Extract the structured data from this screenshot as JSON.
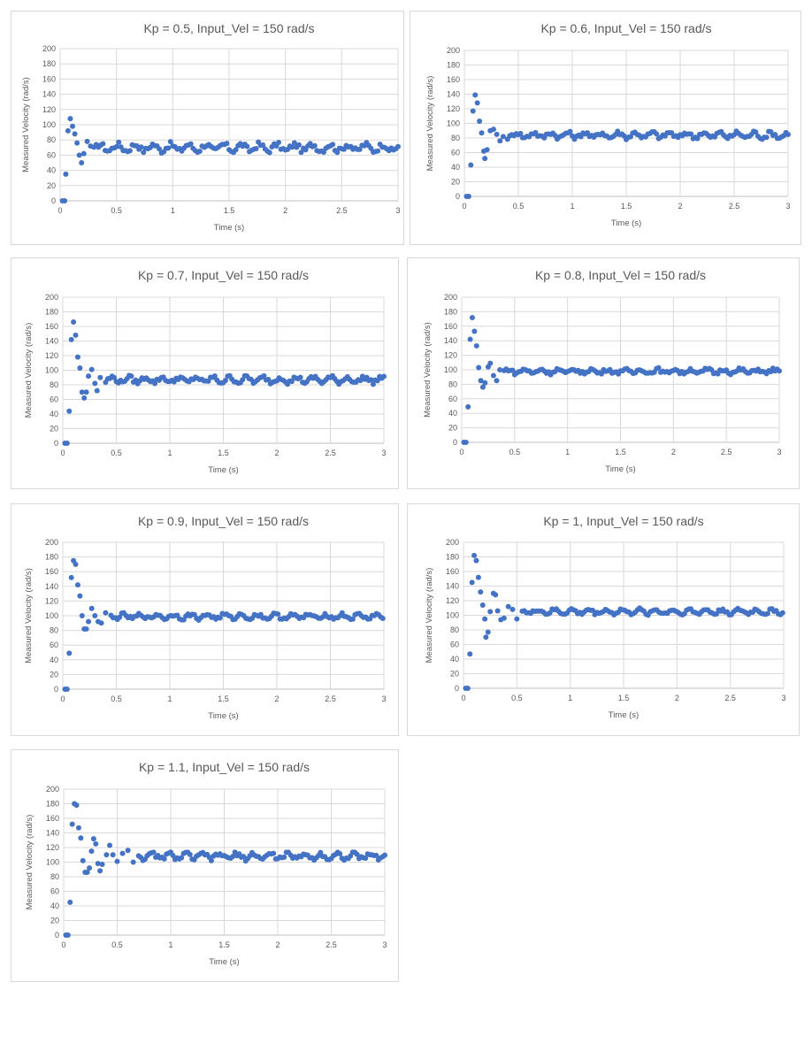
{
  "chart_data": [
    {
      "type": "scatter",
      "title": "Kp = 0.5, Input_Vel = 150 rad/s",
      "xlabel": "Time (s)",
      "ylabel": "Measured Velocity (rad/s)",
      "xlim": [
        0,
        3
      ],
      "ylim": [
        0,
        200
      ],
      "xticks": [
        "0",
        "0.5",
        "1",
        "1.5",
        "2",
        "2.5",
        "3"
      ],
      "yticks": [
        "0",
        "20",
        "40",
        "60",
        "80",
        "100",
        "120",
        "140",
        "160",
        "180",
        "200"
      ],
      "grid": true,
      "marker_color": "#4472c4",
      "peaks": [
        [
          0.02,
          0
        ],
        [
          0.04,
          0
        ],
        [
          0.05,
          35
        ],
        [
          0.07,
          92
        ],
        [
          0.09,
          108
        ],
        [
          0.11,
          98
        ],
        [
          0.13,
          88
        ],
        [
          0.15,
          76
        ],
        [
          0.17,
          60
        ],
        [
          0.19,
          50
        ],
        [
          0.21,
          62
        ],
        [
          0.24,
          78
        ],
        [
          0.27,
          72
        ]
      ],
      "steady": 70,
      "noise": 6,
      "t_start": 0.3
    },
    {
      "type": "scatter",
      "title": "Kp = 0.6, Input_Vel = 150 rad/s",
      "xlabel": "Time (s)",
      "ylabel": "Measured Velocity (rad/s)",
      "xlim": [
        0,
        3
      ],
      "ylim": [
        0,
        200
      ],
      "xticks": [
        "0",
        "0.5",
        "1",
        "1.5",
        "2",
        "2.5",
        "3"
      ],
      "yticks": [
        "0",
        "20",
        "40",
        "60",
        "80",
        "100",
        "120",
        "140",
        "160",
        "180",
        "200"
      ],
      "grid": true,
      "marker_color": "#4472c4",
      "peaks": [
        [
          0.02,
          0
        ],
        [
          0.04,
          0
        ],
        [
          0.06,
          43
        ],
        [
          0.08,
          117
        ],
        [
          0.1,
          139
        ],
        [
          0.12,
          128
        ],
        [
          0.14,
          103
        ],
        [
          0.16,
          87
        ],
        [
          0.18,
          62
        ],
        [
          0.19,
          52
        ],
        [
          0.21,
          64
        ],
        [
          0.24,
          90
        ],
        [
          0.27,
          92
        ],
        [
          0.3,
          85
        ],
        [
          0.33,
          76
        ],
        [
          0.36,
          82
        ]
      ],
      "steady": 84,
      "noise": 5,
      "t_start": 0.4
    },
    {
      "type": "scatter",
      "title": "Kp = 0.7, Input_Vel = 150 rad/s",
      "xlabel": "Time (s)",
      "ylabel": "Measured Velocity (rad/s)",
      "xlim": [
        0,
        3
      ],
      "ylim": [
        0,
        200
      ],
      "xticks": [
        "0",
        "0.5",
        "1",
        "1.5",
        "2",
        "2.5",
        "3"
      ],
      "yticks": [
        "0",
        "20",
        "40",
        "60",
        "80",
        "100",
        "120",
        "140",
        "160",
        "180",
        "200"
      ],
      "grid": true,
      "marker_color": "#4472c4",
      "peaks": [
        [
          0.02,
          0
        ],
        [
          0.04,
          0
        ],
        [
          0.06,
          44
        ],
        [
          0.08,
          142
        ],
        [
          0.1,
          166
        ],
        [
          0.12,
          148
        ],
        [
          0.14,
          118
        ],
        [
          0.16,
          103
        ],
        [
          0.18,
          70
        ],
        [
          0.2,
          62
        ],
        [
          0.22,
          70
        ],
        [
          0.24,
          92
        ],
        [
          0.27,
          101
        ],
        [
          0.3,
          82
        ],
        [
          0.32,
          72
        ],
        [
          0.35,
          90
        ]
      ],
      "steady": 87,
      "noise": 5,
      "t_start": 0.4
    },
    {
      "type": "scatter",
      "title": "Kp = 0.8, Input_Vel = 150 rad/s",
      "xlabel": "Time (s)",
      "ylabel": "Measured Velocity (rad/s)",
      "xlim": [
        0,
        3
      ],
      "ylim": [
        0,
        200
      ],
      "xticks": [
        "0",
        "0.5",
        "1",
        "1.5",
        "2",
        "2.5",
        "3"
      ],
      "yticks": [
        "0",
        "20",
        "40",
        "60",
        "80",
        "100",
        "120",
        "140",
        "160",
        "180",
        "200"
      ],
      "grid": true,
      "marker_color": "#4472c4",
      "peaks": [
        [
          0.02,
          0
        ],
        [
          0.04,
          0
        ],
        [
          0.06,
          49
        ],
        [
          0.08,
          142
        ],
        [
          0.1,
          172
        ],
        [
          0.12,
          153
        ],
        [
          0.14,
          133
        ],
        [
          0.16,
          103
        ],
        [
          0.18,
          85
        ],
        [
          0.2,
          76
        ],
        [
          0.22,
          82
        ],
        [
          0.25,
          104
        ],
        [
          0.27,
          109
        ],
        [
          0.3,
          92
        ],
        [
          0.33,
          85
        ],
        [
          0.36,
          100
        ]
      ],
      "steady": 98,
      "noise": 4,
      "t_start": 0.4
    },
    {
      "type": "scatter",
      "title": "Kp = 0.9, Input_Vel = 150 rad/s",
      "xlabel": "Time (s)",
      "ylabel": "Measured Velocity (rad/s)",
      "xlim": [
        0,
        3
      ],
      "ylim": [
        0,
        200
      ],
      "xticks": [
        "0",
        "0.5",
        "1",
        "1.5",
        "2",
        "2.5",
        "3"
      ],
      "yticks": [
        "0",
        "20",
        "40",
        "60",
        "80",
        "100",
        "120",
        "140",
        "160",
        "180",
        "200"
      ],
      "grid": true,
      "marker_color": "#4472c4",
      "peaks": [
        [
          0.02,
          0
        ],
        [
          0.04,
          0
        ],
        [
          0.06,
          49
        ],
        [
          0.08,
          152
        ],
        [
          0.1,
          175
        ],
        [
          0.12,
          170
        ],
        [
          0.14,
          142
        ],
        [
          0.16,
          127
        ],
        [
          0.18,
          100
        ],
        [
          0.2,
          82
        ],
        [
          0.22,
          82
        ],
        [
          0.24,
          92
        ],
        [
          0.27,
          110
        ],
        [
          0.3,
          100
        ],
        [
          0.33,
          92
        ],
        [
          0.36,
          90
        ],
        [
          0.4,
          104
        ]
      ],
      "steady": 99,
      "noise": 4,
      "t_start": 0.45
    },
    {
      "type": "scatter",
      "title": "Kp = 1, Input_Vel = 150 rad/s",
      "xlabel": "Time (s)",
      "ylabel": "Measured Velocity (rad/s)",
      "xlim": [
        0,
        3
      ],
      "ylim": [
        0,
        200
      ],
      "xticks": [
        "0",
        "0.5",
        "1",
        "1.5",
        "2",
        "2.5",
        "3"
      ],
      "yticks": [
        "0",
        "20",
        "40",
        "60",
        "80",
        "100",
        "120",
        "140",
        "160",
        "180",
        "200"
      ],
      "grid": true,
      "marker_color": "#4472c4",
      "peaks": [
        [
          0.02,
          0
        ],
        [
          0.04,
          0
        ],
        [
          0.06,
          47
        ],
        [
          0.08,
          145
        ],
        [
          0.1,
          182
        ],
        [
          0.12,
          175
        ],
        [
          0.14,
          152
        ],
        [
          0.16,
          132
        ],
        [
          0.18,
          114
        ],
        [
          0.2,
          95
        ],
        [
          0.21,
          70
        ],
        [
          0.23,
          77
        ],
        [
          0.25,
          105
        ],
        [
          0.28,
          130
        ],
        [
          0.3,
          128
        ],
        [
          0.32,
          106
        ],
        [
          0.35,
          94
        ],
        [
          0.38,
          96
        ],
        [
          0.42,
          112
        ],
        [
          0.46,
          108
        ],
        [
          0.5,
          95
        ]
      ],
      "steady": 105,
      "noise": 4,
      "t_start": 0.55
    },
    {
      "type": "scatter",
      "title": "Kp = 1.1, Input_Vel = 150 rad/s",
      "xlabel": "Time (s)",
      "ylabel": "Measured Velocity (rad/s)",
      "xlim": [
        0,
        3
      ],
      "ylim": [
        0,
        200
      ],
      "xticks": [
        "0",
        "0.5",
        "1",
        "1.5",
        "2",
        "2.5",
        "3"
      ],
      "yticks": [
        "0",
        "20",
        "40",
        "60",
        "80",
        "100",
        "120",
        "140",
        "160",
        "180",
        "200"
      ],
      "grid": true,
      "marker_color": "#4472c4",
      "peaks": [
        [
          0.02,
          0
        ],
        [
          0.04,
          0
        ],
        [
          0.06,
          45
        ],
        [
          0.08,
          152
        ],
        [
          0.1,
          180
        ],
        [
          0.12,
          178
        ],
        [
          0.14,
          147
        ],
        [
          0.16,
          133
        ],
        [
          0.18,
          102
        ],
        [
          0.2,
          86
        ],
        [
          0.22,
          86
        ],
        [
          0.24,
          92
        ],
        [
          0.26,
          115
        ],
        [
          0.28,
          132
        ],
        [
          0.3,
          125
        ],
        [
          0.32,
          98
        ],
        [
          0.34,
          88
        ],
        [
          0.36,
          97
        ],
        [
          0.4,
          110
        ],
        [
          0.43,
          123
        ],
        [
          0.46,
          110
        ],
        [
          0.5,
          101
        ],
        [
          0.55,
          112
        ],
        [
          0.6,
          116
        ],
        [
          0.65,
          100
        ]
      ],
      "steady": 108,
      "noise": 5,
      "t_start": 0.7
    }
  ]
}
